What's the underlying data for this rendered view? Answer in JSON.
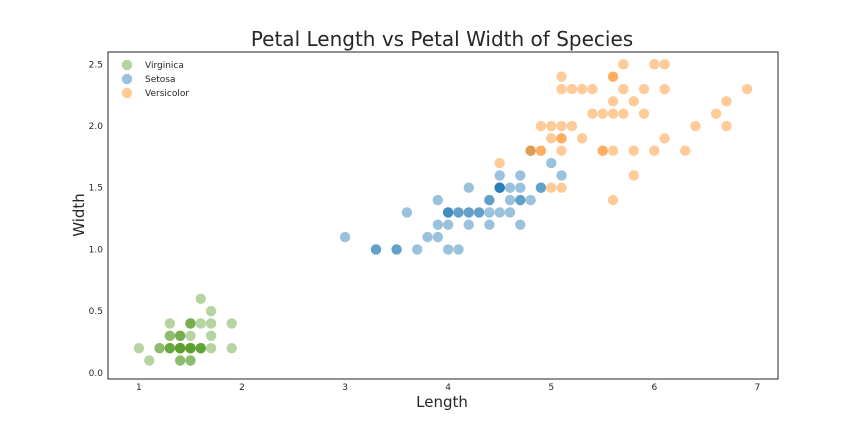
{
  "chart_data": {
    "type": "scatter",
    "title": "Petal Length vs Petal Width of Species",
    "xlabel": "Length",
    "ylabel": "Width",
    "xlim": [
      0.7,
      7.2
    ],
    "ylim": [
      -0.05,
      2.6
    ],
    "xticks": [
      "1",
      "2",
      "3",
      "4",
      "5",
      "6",
      "7"
    ],
    "yticks": [
      "0.0",
      "0.5",
      "1.0",
      "1.5",
      "2.0",
      "2.5"
    ],
    "grid": false,
    "legend_position": "top-left",
    "series": [
      {
        "name": "Virginica",
        "color": "#5aa02c",
        "points": [
          [
            1.4,
            0.2
          ],
          [
            1.4,
            0.2
          ],
          [
            1.3,
            0.2
          ],
          [
            1.5,
            0.2
          ],
          [
            1.4,
            0.2
          ],
          [
            1.7,
            0.4
          ],
          [
            1.4,
            0.3
          ],
          [
            1.5,
            0.2
          ],
          [
            1.4,
            0.2
          ],
          [
            1.5,
            0.1
          ],
          [
            1.5,
            0.2
          ],
          [
            1.6,
            0.2
          ],
          [
            1.4,
            0.1
          ],
          [
            1.1,
            0.1
          ],
          [
            1.2,
            0.2
          ],
          [
            1.5,
            0.4
          ],
          [
            1.3,
            0.4
          ],
          [
            1.4,
            0.3
          ],
          [
            1.7,
            0.3
          ],
          [
            1.5,
            0.3
          ],
          [
            1.7,
            0.2
          ],
          [
            1.5,
            0.4
          ],
          [
            1.0,
            0.2
          ],
          [
            1.7,
            0.5
          ],
          [
            1.9,
            0.2
          ],
          [
            1.6,
            0.2
          ],
          [
            1.6,
            0.4
          ],
          [
            1.5,
            0.2
          ],
          [
            1.4,
            0.2
          ],
          [
            1.6,
            0.2
          ],
          [
            1.6,
            0.2
          ],
          [
            1.5,
            0.4
          ],
          [
            1.5,
            0.1
          ],
          [
            1.4,
            0.2
          ],
          [
            1.5,
            0.2
          ],
          [
            1.2,
            0.2
          ],
          [
            1.3,
            0.2
          ],
          [
            1.4,
            0.1
          ],
          [
            1.3,
            0.2
          ],
          [
            1.5,
            0.2
          ],
          [
            1.3,
            0.3
          ],
          [
            1.3,
            0.3
          ],
          [
            1.3,
            0.2
          ],
          [
            1.6,
            0.6
          ],
          [
            1.9,
            0.4
          ],
          [
            1.4,
            0.3
          ],
          [
            1.6,
            0.2
          ],
          [
            1.4,
            0.2
          ],
          [
            1.5,
            0.2
          ],
          [
            1.4,
            0.2
          ]
        ]
      },
      {
        "name": "Setosa",
        "color": "#1f77b4",
        "points": [
          [
            4.7,
            1.4
          ],
          [
            4.5,
            1.5
          ],
          [
            4.9,
            1.5
          ],
          [
            4.0,
            1.3
          ],
          [
            4.6,
            1.5
          ],
          [
            4.5,
            1.3
          ],
          [
            4.7,
            1.6
          ],
          [
            3.3,
            1.0
          ],
          [
            4.6,
            1.3
          ],
          [
            3.9,
            1.4
          ],
          [
            3.5,
            1.0
          ],
          [
            4.2,
            1.5
          ],
          [
            4.0,
            1.0
          ],
          [
            4.7,
            1.4
          ],
          [
            3.6,
            1.3
          ],
          [
            4.4,
            1.4
          ],
          [
            4.5,
            1.5
          ],
          [
            4.1,
            1.0
          ],
          [
            4.5,
            1.5
          ],
          [
            3.9,
            1.1
          ],
          [
            4.8,
            1.8
          ],
          [
            4.0,
            1.3
          ],
          [
            4.9,
            1.5
          ],
          [
            4.7,
            1.2
          ],
          [
            4.3,
            1.3
          ],
          [
            4.4,
            1.4
          ],
          [
            4.8,
            1.4
          ],
          [
            5.0,
            1.7
          ],
          [
            4.5,
            1.5
          ],
          [
            3.5,
            1.0
          ],
          [
            3.8,
            1.1
          ],
          [
            3.7,
            1.0
          ],
          [
            3.9,
            1.2
          ],
          [
            5.1,
            1.6
          ],
          [
            4.5,
            1.5
          ],
          [
            4.5,
            1.6
          ],
          [
            4.7,
            1.5
          ],
          [
            4.4,
            1.3
          ],
          [
            4.1,
            1.3
          ],
          [
            4.0,
            1.3
          ],
          [
            4.4,
            1.2
          ],
          [
            4.6,
            1.4
          ],
          [
            4.0,
            1.2
          ],
          [
            3.3,
            1.0
          ],
          [
            4.2,
            1.3
          ],
          [
            4.2,
            1.2
          ],
          [
            4.2,
            1.3
          ],
          [
            4.3,
            1.3
          ],
          [
            3.0,
            1.1
          ],
          [
            4.1,
            1.3
          ]
        ]
      },
      {
        "name": "Versicolor",
        "color": "#ff8c1a",
        "points": [
          [
            6.0,
            2.5
          ],
          [
            5.1,
            1.9
          ],
          [
            5.9,
            2.1
          ],
          [
            5.6,
            1.8
          ],
          [
            5.8,
            2.2
          ],
          [
            6.6,
            2.1
          ],
          [
            4.5,
            1.7
          ],
          [
            6.3,
            1.8
          ],
          [
            5.8,
            1.8
          ],
          [
            6.1,
            2.5
          ],
          [
            5.1,
            2.0
          ],
          [
            5.3,
            1.9
          ],
          [
            5.5,
            2.1
          ],
          [
            5.0,
            2.0
          ],
          [
            5.1,
            2.4
          ],
          [
            5.3,
            2.3
          ],
          [
            5.5,
            1.8
          ],
          [
            6.7,
            2.2
          ],
          [
            6.9,
            2.3
          ],
          [
            5.0,
            1.5
          ],
          [
            5.7,
            2.3
          ],
          [
            4.9,
            2.0
          ],
          [
            6.7,
            2.0
          ],
          [
            4.9,
            1.8
          ],
          [
            5.7,
            2.1
          ],
          [
            6.0,
            1.8
          ],
          [
            4.8,
            1.8
          ],
          [
            4.9,
            1.8
          ],
          [
            5.6,
            2.1
          ],
          [
            5.8,
            1.6
          ],
          [
            6.1,
            1.9
          ],
          [
            6.4,
            2.0
          ],
          [
            5.6,
            2.2
          ],
          [
            5.1,
            1.5
          ],
          [
            5.6,
            1.4
          ],
          [
            6.1,
            2.3
          ],
          [
            5.6,
            2.4
          ],
          [
            5.5,
            1.8
          ],
          [
            4.8,
            1.8
          ],
          [
            5.4,
            2.1
          ],
          [
            5.6,
            2.4
          ],
          [
            5.1,
            2.3
          ],
          [
            5.1,
            1.9
          ],
          [
            5.9,
            2.3
          ],
          [
            5.7,
            2.5
          ],
          [
            5.2,
            2.3
          ],
          [
            5.0,
            1.9
          ],
          [
            5.2,
            2.0
          ],
          [
            5.4,
            2.3
          ],
          [
            5.1,
            1.8
          ]
        ]
      }
    ]
  }
}
